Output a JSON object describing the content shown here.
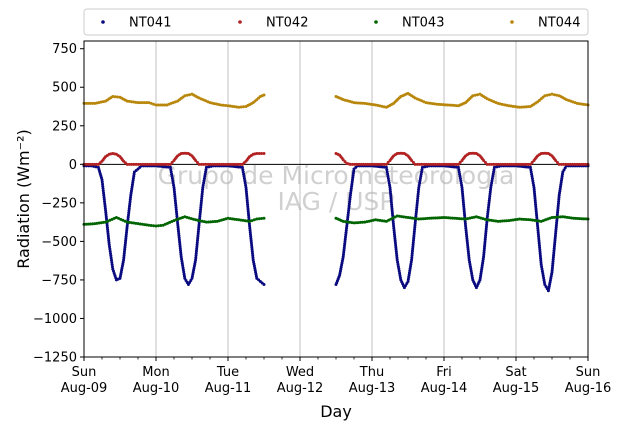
{
  "chart_data": {
    "type": "scatter",
    "xlabel": "Day",
    "ylabel": "Radiation (Wm⁻²)",
    "ylim": [
      -1250,
      800
    ],
    "xlim": [
      0,
      7
    ],
    "yticks": [
      -1250,
      -1000,
      -750,
      -500,
      -250,
      0,
      250,
      500,
      750
    ],
    "ytick_labels": [
      "−1250",
      "−1000",
      "−750",
      "−500",
      "−250",
      "0",
      "250",
      "500",
      "750"
    ],
    "x_ticks": [
      {
        "x": 0,
        "day": "Sun",
        "date": "Aug-09"
      },
      {
        "x": 1,
        "day": "Mon",
        "date": "Aug-10"
      },
      {
        "x": 2,
        "day": "Tue",
        "date": "Aug-11"
      },
      {
        "x": 3,
        "day": "Wed",
        "date": "Aug-12"
      },
      {
        "x": 4,
        "day": "Thu",
        "date": "Aug-13"
      },
      {
        "x": 5,
        "day": "Fri",
        "date": "Aug-14"
      },
      {
        "x": 6,
        "day": "Sat",
        "date": "Aug-15"
      },
      {
        "x": 7,
        "day": "Sun",
        "date": "Aug-16"
      }
    ],
    "grid": "vertical",
    "zero_line": true,
    "legend_position": "top, outside, 4 columns",
    "watermark": [
      "Grupo de Micrometeorologia",
      "IAG / USP"
    ],
    "data_gap": [
      2.5,
      3.5
    ],
    "series": [
      {
        "name": "NT041",
        "color": "#0a0a80",
        "values": [
          {
            "x": 0.0,
            "y": -10
          },
          {
            "x": 0.1,
            "y": -10
          },
          {
            "x": 0.2,
            "y": -20
          },
          {
            "x": 0.25,
            "y": -100
          },
          {
            "x": 0.3,
            "y": -300
          },
          {
            "x": 0.35,
            "y": -520
          },
          {
            "x": 0.4,
            "y": -680
          },
          {
            "x": 0.45,
            "y": -750
          },
          {
            "x": 0.5,
            "y": -740
          },
          {
            "x": 0.55,
            "y": -620
          },
          {
            "x": 0.6,
            "y": -400
          },
          {
            "x": 0.65,
            "y": -200
          },
          {
            "x": 0.7,
            "y": -50
          },
          {
            "x": 0.8,
            "y": -10
          },
          {
            "x": 1.0,
            "y": -10
          },
          {
            "x": 1.2,
            "y": -20
          },
          {
            "x": 1.25,
            "y": -150
          },
          {
            "x": 1.3,
            "y": -380
          },
          {
            "x": 1.35,
            "y": -600
          },
          {
            "x": 1.4,
            "y": -740
          },
          {
            "x": 1.45,
            "y": -780
          },
          {
            "x": 1.5,
            "y": -740
          },
          {
            "x": 1.55,
            "y": -620
          },
          {
            "x": 1.6,
            "y": -380
          },
          {
            "x": 1.65,
            "y": -150
          },
          {
            "x": 1.7,
            "y": -20
          },
          {
            "x": 1.8,
            "y": -10
          },
          {
            "x": 2.0,
            "y": -10
          },
          {
            "x": 2.2,
            "y": -20
          },
          {
            "x": 2.25,
            "y": -150
          },
          {
            "x": 2.3,
            "y": -400
          },
          {
            "x": 2.35,
            "y": -620
          },
          {
            "x": 2.4,
            "y": -740
          },
          {
            "x": 2.5,
            "y": -780
          },
          {
            "x": 3.5,
            "y": -780
          },
          {
            "x": 3.55,
            "y": -720
          },
          {
            "x": 3.6,
            "y": -600
          },
          {
            "x": 3.65,
            "y": -400
          },
          {
            "x": 3.7,
            "y": -200
          },
          {
            "x": 3.75,
            "y": -30
          },
          {
            "x": 3.8,
            "y": -10
          },
          {
            "x": 4.0,
            "y": -10
          },
          {
            "x": 4.2,
            "y": -20
          },
          {
            "x": 4.25,
            "y": -150
          },
          {
            "x": 4.3,
            "y": -400
          },
          {
            "x": 4.35,
            "y": -620
          },
          {
            "x": 4.4,
            "y": -750
          },
          {
            "x": 4.45,
            "y": -800
          },
          {
            "x": 4.5,
            "y": -760
          },
          {
            "x": 4.55,
            "y": -620
          },
          {
            "x": 4.6,
            "y": -380
          },
          {
            "x": 4.65,
            "y": -150
          },
          {
            "x": 4.7,
            "y": -20
          },
          {
            "x": 4.8,
            "y": -10
          },
          {
            "x": 5.0,
            "y": -10
          },
          {
            "x": 5.2,
            "y": -20
          },
          {
            "x": 5.25,
            "y": -150
          },
          {
            "x": 5.3,
            "y": -400
          },
          {
            "x": 5.35,
            "y": -620
          },
          {
            "x": 5.4,
            "y": -750
          },
          {
            "x": 5.45,
            "y": -800
          },
          {
            "x": 5.5,
            "y": -750
          },
          {
            "x": 5.55,
            "y": -600
          },
          {
            "x": 5.6,
            "y": -350
          },
          {
            "x": 5.65,
            "y": -150
          },
          {
            "x": 5.7,
            "y": -20
          },
          {
            "x": 5.8,
            "y": -10
          },
          {
            "x": 6.0,
            "y": -10
          },
          {
            "x": 6.2,
            "y": -20
          },
          {
            "x": 6.25,
            "y": -150
          },
          {
            "x": 6.3,
            "y": -400
          },
          {
            "x": 6.35,
            "y": -650
          },
          {
            "x": 6.4,
            "y": -780
          },
          {
            "x": 6.45,
            "y": -820
          },
          {
            "x": 6.5,
            "y": -700
          },
          {
            "x": 6.55,
            "y": -450
          },
          {
            "x": 6.6,
            "y": -200
          },
          {
            "x": 6.65,
            "y": -50
          },
          {
            "x": 6.7,
            "y": -10
          },
          {
            "x": 7.0,
            "y": -10
          }
        ]
      },
      {
        "name": "NT042",
        "color": "#b22222",
        "values": [
          {
            "x": 0.0,
            "y": 0
          },
          {
            "x": 0.2,
            "y": 0
          },
          {
            "x": 0.25,
            "y": 20
          },
          {
            "x": 0.3,
            "y": 50
          },
          {
            "x": 0.35,
            "y": 65
          },
          {
            "x": 0.4,
            "y": 70
          },
          {
            "x": 0.45,
            "y": 65
          },
          {
            "x": 0.5,
            "y": 50
          },
          {
            "x": 0.55,
            "y": 20
          },
          {
            "x": 0.6,
            "y": 0
          },
          {
            "x": 1.0,
            "y": 0
          },
          {
            "x": 1.2,
            "y": 0
          },
          {
            "x": 1.25,
            "y": 25
          },
          {
            "x": 1.3,
            "y": 55
          },
          {
            "x": 1.35,
            "y": 70
          },
          {
            "x": 1.4,
            "y": 72
          },
          {
            "x": 1.45,
            "y": 70
          },
          {
            "x": 1.5,
            "y": 55
          },
          {
            "x": 1.55,
            "y": 25
          },
          {
            "x": 1.6,
            "y": 0
          },
          {
            "x": 2.0,
            "y": 0
          },
          {
            "x": 2.2,
            "y": 0
          },
          {
            "x": 2.25,
            "y": 20
          },
          {
            "x": 2.3,
            "y": 50
          },
          {
            "x": 2.35,
            "y": 65
          },
          {
            "x": 2.4,
            "y": 70
          },
          {
            "x": 2.5,
            "y": 70
          },
          {
            "x": 3.5,
            "y": 70
          },
          {
            "x": 3.55,
            "y": 60
          },
          {
            "x": 3.6,
            "y": 30
          },
          {
            "x": 3.65,
            "y": 5
          },
          {
            "x": 3.7,
            "y": 0
          },
          {
            "x": 4.0,
            "y": 0
          },
          {
            "x": 4.2,
            "y": 0
          },
          {
            "x": 4.25,
            "y": 25
          },
          {
            "x": 4.3,
            "y": 55
          },
          {
            "x": 4.35,
            "y": 70
          },
          {
            "x": 4.4,
            "y": 72
          },
          {
            "x": 4.45,
            "y": 70
          },
          {
            "x": 4.5,
            "y": 55
          },
          {
            "x": 4.55,
            "y": 25
          },
          {
            "x": 4.6,
            "y": 0
          },
          {
            "x": 5.0,
            "y": 0
          },
          {
            "x": 5.2,
            "y": 0
          },
          {
            "x": 5.25,
            "y": 25
          },
          {
            "x": 5.3,
            "y": 55
          },
          {
            "x": 5.35,
            "y": 70
          },
          {
            "x": 5.4,
            "y": 72
          },
          {
            "x": 5.45,
            "y": 70
          },
          {
            "x": 5.5,
            "y": 55
          },
          {
            "x": 5.55,
            "y": 25
          },
          {
            "x": 5.6,
            "y": 0
          },
          {
            "x": 6.0,
            "y": 0
          },
          {
            "x": 6.2,
            "y": 0
          },
          {
            "x": 6.25,
            "y": 25
          },
          {
            "x": 6.3,
            "y": 55
          },
          {
            "x": 6.35,
            "y": 70
          },
          {
            "x": 6.4,
            "y": 72
          },
          {
            "x": 6.45,
            "y": 70
          },
          {
            "x": 6.5,
            "y": 55
          },
          {
            "x": 6.55,
            "y": 25
          },
          {
            "x": 6.6,
            "y": 0
          },
          {
            "x": 7.0,
            "y": 0
          }
        ]
      },
      {
        "name": "NT043",
        "color": "#006400",
        "values": [
          {
            "x": 0.0,
            "y": -390
          },
          {
            "x": 0.15,
            "y": -385
          },
          {
            "x": 0.3,
            "y": -375
          },
          {
            "x": 0.45,
            "y": -345
          },
          {
            "x": 0.6,
            "y": -375
          },
          {
            "x": 0.75,
            "y": -385
          },
          {
            "x": 0.9,
            "y": -395
          },
          {
            "x": 1.0,
            "y": -400
          },
          {
            "x": 1.1,
            "y": -395
          },
          {
            "x": 1.25,
            "y": -365
          },
          {
            "x": 1.4,
            "y": -340
          },
          {
            "x": 1.55,
            "y": -360
          },
          {
            "x": 1.7,
            "y": -375
          },
          {
            "x": 1.85,
            "y": -370
          },
          {
            "x": 2.0,
            "y": -350
          },
          {
            "x": 2.15,
            "y": -360
          },
          {
            "x": 2.3,
            "y": -370
          },
          {
            "x": 2.4,
            "y": -355
          },
          {
            "x": 2.5,
            "y": -350
          },
          {
            "x": 3.5,
            "y": -350
          },
          {
            "x": 3.6,
            "y": -370
          },
          {
            "x": 3.75,
            "y": -380
          },
          {
            "x": 3.9,
            "y": -375
          },
          {
            "x": 4.05,
            "y": -360
          },
          {
            "x": 4.2,
            "y": -370
          },
          {
            "x": 4.35,
            "y": -335
          },
          {
            "x": 4.5,
            "y": -345
          },
          {
            "x": 4.65,
            "y": -355
          },
          {
            "x": 4.8,
            "y": -350
          },
          {
            "x": 5.0,
            "y": -345
          },
          {
            "x": 5.15,
            "y": -350
          },
          {
            "x": 5.3,
            "y": -355
          },
          {
            "x": 5.45,
            "y": -340
          },
          {
            "x": 5.6,
            "y": -360
          },
          {
            "x": 5.75,
            "y": -370
          },
          {
            "x": 5.9,
            "y": -365
          },
          {
            "x": 6.05,
            "y": -355
          },
          {
            "x": 6.2,
            "y": -360
          },
          {
            "x": 6.35,
            "y": -370
          },
          {
            "x": 6.5,
            "y": -345
          },
          {
            "x": 6.65,
            "y": -340
          },
          {
            "x": 6.8,
            "y": -350
          },
          {
            "x": 7.0,
            "y": -355
          }
        ]
      },
      {
        "name": "NT044",
        "color": "#b8860b",
        "values": [
          {
            "x": 0.0,
            "y": 395
          },
          {
            "x": 0.15,
            "y": 395
          },
          {
            "x": 0.3,
            "y": 410
          },
          {
            "x": 0.4,
            "y": 440
          },
          {
            "x": 0.5,
            "y": 435
          },
          {
            "x": 0.6,
            "y": 410
          },
          {
            "x": 0.75,
            "y": 400
          },
          {
            "x": 0.9,
            "y": 400
          },
          {
            "x": 1.0,
            "y": 385
          },
          {
            "x": 1.15,
            "y": 385
          },
          {
            "x": 1.3,
            "y": 410
          },
          {
            "x": 1.4,
            "y": 445
          },
          {
            "x": 1.5,
            "y": 455
          },
          {
            "x": 1.6,
            "y": 430
          },
          {
            "x": 1.75,
            "y": 400
          },
          {
            "x": 1.9,
            "y": 385
          },
          {
            "x": 2.0,
            "y": 380
          },
          {
            "x": 2.15,
            "y": 370
          },
          {
            "x": 2.25,
            "y": 375
          },
          {
            "x": 2.35,
            "y": 400
          },
          {
            "x": 2.45,
            "y": 440
          },
          {
            "x": 2.5,
            "y": 450
          },
          {
            "x": 3.5,
            "y": 440
          },
          {
            "x": 3.6,
            "y": 420
          },
          {
            "x": 3.75,
            "y": 400
          },
          {
            "x": 3.9,
            "y": 395
          },
          {
            "x": 4.05,
            "y": 385
          },
          {
            "x": 4.2,
            "y": 370
          },
          {
            "x": 4.3,
            "y": 395
          },
          {
            "x": 4.4,
            "y": 440
          },
          {
            "x": 4.5,
            "y": 460
          },
          {
            "x": 4.6,
            "y": 430
          },
          {
            "x": 4.75,
            "y": 400
          },
          {
            "x": 4.9,
            "y": 390
          },
          {
            "x": 5.05,
            "y": 385
          },
          {
            "x": 5.2,
            "y": 380
          },
          {
            "x": 5.3,
            "y": 400
          },
          {
            "x": 5.4,
            "y": 445
          },
          {
            "x": 5.5,
            "y": 455
          },
          {
            "x": 5.6,
            "y": 425
          },
          {
            "x": 5.75,
            "y": 395
          },
          {
            "x": 5.9,
            "y": 380
          },
          {
            "x": 6.05,
            "y": 370
          },
          {
            "x": 6.2,
            "y": 375
          },
          {
            "x": 6.3,
            "y": 405
          },
          {
            "x": 6.4,
            "y": 445
          },
          {
            "x": 6.5,
            "y": 455
          },
          {
            "x": 6.6,
            "y": 445
          },
          {
            "x": 6.7,
            "y": 420
          },
          {
            "x": 6.85,
            "y": 395
          },
          {
            "x": 7.0,
            "y": 385
          }
        ]
      }
    ]
  }
}
